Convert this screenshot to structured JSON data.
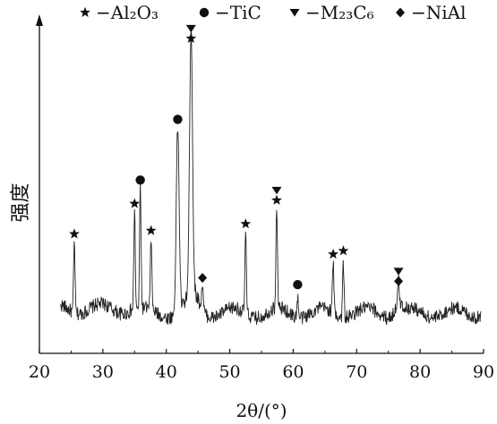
{
  "chart_data": {
    "type": "line",
    "title": "",
    "xlabel": "2θ/(°)",
    "ylabel": "强度",
    "xlim": [
      20,
      90
    ],
    "x_ticks": [
      20,
      30,
      40,
      50,
      60,
      70,
      80,
      90
    ],
    "y_ticks_shown": false,
    "grid": false,
    "legend_position": "top",
    "legend": [
      {
        "symbol": "star",
        "label": "−Al₂O₃"
      },
      {
        "symbol": "circle",
        "label": "−TiC"
      },
      {
        "symbol": "triangle-down",
        "label": "−M₂₃C₆"
      },
      {
        "symbol": "diamond",
        "label": "−NiAl"
      }
    ],
    "baseline_intensity": 12,
    "ylim": [
      0,
      100
    ],
    "peaks": [
      {
        "x": 25.5,
        "y": 33,
        "phases": [
          "star"
        ]
      },
      {
        "x": 35.0,
        "y": 42,
        "phases": [
          "star"
        ]
      },
      {
        "x": 35.9,
        "y": 49,
        "phases": [
          "circle"
        ]
      },
      {
        "x": 37.6,
        "y": 34,
        "phases": [
          "star"
        ]
      },
      {
        "x": 41.8,
        "y": 67,
        "phases": [
          "circle"
        ]
      },
      {
        "x": 43.9,
        "y": 91,
        "phases": [
          "star",
          "triangle-down"
        ]
      },
      {
        "x": 45.7,
        "y": 20,
        "phases": [
          "diamond"
        ]
      },
      {
        "x": 52.5,
        "y": 36,
        "phases": [
          "star"
        ]
      },
      {
        "x": 57.4,
        "y": 43,
        "phases": [
          "star",
          "triangle-down"
        ]
      },
      {
        "x": 60.7,
        "y": 18,
        "phases": [
          "circle"
        ]
      },
      {
        "x": 66.3,
        "y": 27,
        "phases": [
          "star"
        ]
      },
      {
        "x": 67.9,
        "y": 28,
        "phases": [
          "star"
        ]
      },
      {
        "x": 76.6,
        "y": 19,
        "phases": [
          "diamond",
          "triangle-down"
        ]
      }
    ]
  }
}
